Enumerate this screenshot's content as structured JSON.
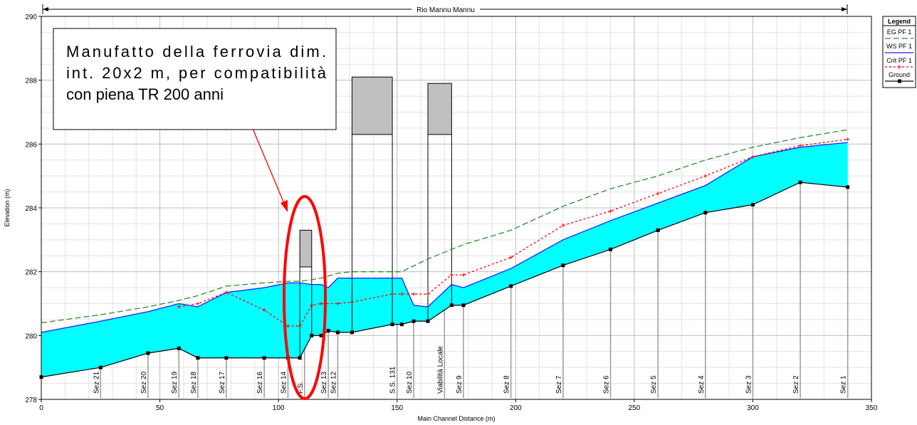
{
  "chart_data": {
    "type": "area",
    "title": "Rio Mannu Mannu",
    "xlabel": "Main Channel Distance (m)",
    "ylabel": "Elevation (m)",
    "xlim": [
      0,
      350
    ],
    "ylim": [
      278,
      290
    ],
    "x_ticks": [
      "0",
      "50",
      "100",
      "150",
      "200",
      "250",
      "300",
      "350"
    ],
    "y_ticks": [
      "278",
      "280",
      "282",
      "284",
      "286",
      "288",
      "290"
    ],
    "grid": true,
    "legend_position": "top-right",
    "legend_title": "Legend",
    "series": [
      {
        "name": "EG  PF 1",
        "color": "#2e8b2e",
        "style": "dashed",
        "points": [
          [
            0,
            280.4
          ],
          [
            25,
            280.65
          ],
          [
            45,
            280.9
          ],
          [
            58,
            281.1
          ],
          [
            66,
            281.25
          ],
          [
            78,
            281.55
          ],
          [
            94,
            281.65
          ],
          [
            104,
            281.7
          ],
          [
            109,
            281.7
          ],
          [
            114,
            281.75
          ],
          [
            118,
            281.8
          ],
          [
            125,
            281.95
          ],
          [
            131,
            282.0
          ],
          [
            148,
            282.0
          ],
          [
            152,
            282.0
          ],
          [
            163,
            282.4
          ],
          [
            173,
            282.7
          ],
          [
            178,
            282.85
          ],
          [
            198,
            283.3
          ],
          [
            220,
            284.05
          ],
          [
            240,
            284.6
          ],
          [
            260,
            285.0
          ],
          [
            280,
            285.5
          ],
          [
            300,
            285.9
          ],
          [
            320,
            286.2
          ],
          [
            340,
            286.45
          ]
        ]
      },
      {
        "name": "WS  PF 1",
        "color": "#1f1fff",
        "style": "solid",
        "points": [
          [
            0,
            280.1
          ],
          [
            25,
            280.45
          ],
          [
            45,
            280.75
          ],
          [
            58,
            281.0
          ],
          [
            66,
            280.9
          ],
          [
            78,
            281.35
          ],
          [
            94,
            281.5
          ],
          [
            104,
            281.65
          ],
          [
            109,
            281.65
          ],
          [
            114,
            281.6
          ],
          [
            118,
            281.6
          ],
          [
            121,
            281.5
          ],
          [
            125,
            281.8
          ],
          [
            131,
            281.8
          ],
          [
            148,
            281.8
          ],
          [
            152,
            281.8
          ],
          [
            157,
            280.95
          ],
          [
            163,
            280.9
          ],
          [
            173,
            281.6
          ],
          [
            178,
            281.5
          ],
          [
            198,
            282.1
          ],
          [
            220,
            283.0
          ],
          [
            240,
            283.6
          ],
          [
            260,
            284.15
          ],
          [
            280,
            284.7
          ],
          [
            300,
            285.6
          ],
          [
            320,
            285.9
          ],
          [
            340,
            286.05
          ]
        ]
      },
      {
        "name": "Crit  PF 1",
        "color": "#ff0000",
        "style": "dotted",
        "points": [
          [
            58,
            280.9
          ],
          [
            66,
            281.0
          ],
          [
            78,
            281.35
          ],
          [
            94,
            280.8
          ],
          [
            104,
            280.3
          ],
          [
            109,
            280.3
          ],
          [
            114,
            280.95
          ],
          [
            118,
            281.0
          ],
          [
            125,
            281.0
          ],
          [
            131,
            281.05
          ],
          [
            148,
            281.3
          ],
          [
            152,
            281.3
          ],
          [
            157,
            281.3
          ],
          [
            163,
            281.3
          ],
          [
            173,
            281.9
          ],
          [
            178,
            281.9
          ],
          [
            198,
            282.45
          ],
          [
            220,
            283.45
          ],
          [
            240,
            283.9
          ],
          [
            260,
            284.45
          ],
          [
            280,
            285.0
          ],
          [
            300,
            285.6
          ],
          [
            320,
            285.95
          ],
          [
            340,
            286.15
          ]
        ]
      },
      {
        "name": "Ground",
        "color": "#000000",
        "style": "solid-marker",
        "points": [
          [
            0,
            278.7
          ],
          [
            25,
            279.0
          ],
          [
            45,
            279.45
          ],
          [
            58,
            279.6
          ],
          [
            66,
            279.3
          ],
          [
            78,
            279.3
          ],
          [
            94,
            279.3
          ],
          [
            104,
            279.3
          ],
          [
            109,
            279.3
          ],
          [
            114,
            280.0
          ],
          [
            118,
            280.0
          ],
          [
            121,
            280.15
          ],
          [
            125,
            280.1
          ],
          [
            131,
            280.1
          ],
          [
            148,
            280.35
          ],
          [
            152,
            280.35
          ],
          [
            157,
            280.45
          ],
          [
            163,
            280.45
          ],
          [
            173,
            280.95
          ],
          [
            178,
            280.95
          ],
          [
            198,
            281.55
          ],
          [
            220,
            282.2
          ],
          [
            240,
            282.7
          ],
          [
            260,
            283.3
          ],
          [
            280,
            283.85
          ],
          [
            300,
            284.1
          ],
          [
            320,
            284.8
          ],
          [
            340,
            284.65
          ]
        ]
      }
    ],
    "sections": [
      {
        "label": "Sez 21",
        "x": 25
      },
      {
        "label": "Sez 20",
        "x": 45
      },
      {
        "label": "Sez 19",
        "x": 58
      },
      {
        "label": "Sez 18",
        "x": 66
      },
      {
        "label": "Sez 17",
        "x": 78
      },
      {
        "label": "Sez 16",
        "x": 94
      },
      {
        "label": "Sez 14",
        "x": 104
      },
      {
        "label": "F.S.",
        "x": 111
      },
      {
        "label": "Sez 13",
        "x": 121
      },
      {
        "label": "Sez 12",
        "x": 125
      },
      {
        "label": "S.S. 131",
        "x": 150
      },
      {
        "label": "Sez 10",
        "x": 157
      },
      {
        "label": "Viabilità Locale",
        "x": 170
      },
      {
        "label": "Sez 9",
        "x": 178
      },
      {
        "label": "Sez 8",
        "x": 198
      },
      {
        "label": "Sez 7",
        "x": 220
      },
      {
        "label": "Sez 6",
        "x": 240
      },
      {
        "label": "Sez 5",
        "x": 260
      },
      {
        "label": "Sez 4",
        "x": 280
      },
      {
        "label": "Sez 3",
        "x": 300
      },
      {
        "label": "Sez 2",
        "x": 320
      },
      {
        "label": "Sez 1",
        "x": 340
      }
    ],
    "bridges": [
      {
        "x1": 109,
        "x2": 114,
        "deck_bottom": 282.15,
        "deck_top": 283.3
      },
      {
        "x1": 131,
        "x2": 148,
        "deck_bottom": 286.3,
        "deck_top": 288.1
      },
      {
        "x1": 163,
        "x2": 173,
        "deck_bottom": 286.3,
        "deck_top": 287.9
      }
    ],
    "water_fill_color": "#00ffff",
    "callout": {
      "lines": [
        "Manufatto della ferrovia dim.",
        "int. 20x2 m, per compatibilità",
        "con piena TR 200 anni"
      ],
      "highlight_color": "#ff0000"
    }
  }
}
